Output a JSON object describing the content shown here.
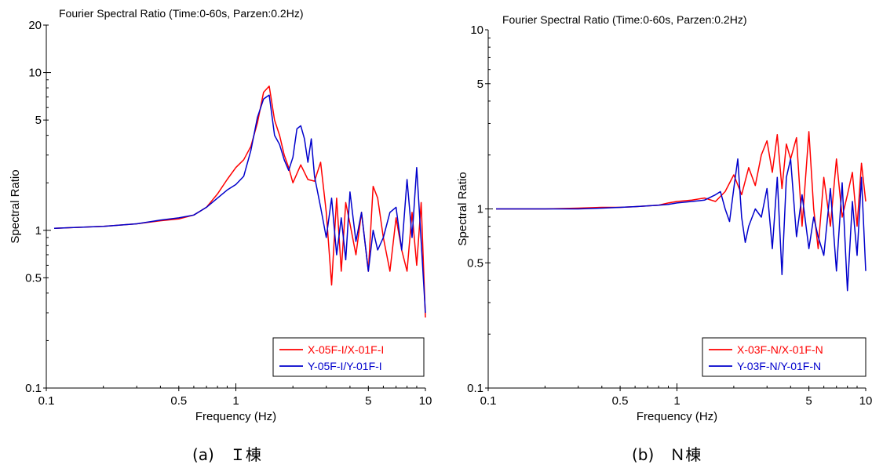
{
  "captions": [
    "(a)　Ｉ棟",
    "(b)　Ｎ棟"
  ],
  "chart_data": [
    {
      "type": "line",
      "title": "Fourier Spectral Ratio (Time:0-60s, Parzen:0.2Hz)",
      "xlabel": "Frequency (Hz)",
      "ylabel": "Spectral Ratio",
      "xscale": "log",
      "yscale": "log",
      "xlim": [
        0.1,
        10
      ],
      "ylim": [
        0.1,
        20
      ],
      "x_ticks": [
        0.1,
        0.5,
        1,
        5,
        10
      ],
      "x_tick_labels": [
        "0.1",
        "0.5",
        "1",
        "5",
        "10"
      ],
      "y_ticks": [
        0.1,
        0.5,
        1,
        5,
        10,
        20
      ],
      "y_tick_labels": [
        "0.1",
        "0.5",
        "1",
        "5",
        "10",
        "20"
      ],
      "grid": false,
      "legend_position": "bottom-right",
      "series": [
        {
          "name": "X-05F-I/X-01F-I",
          "color": "#ff0000",
          "x": [
            0.11,
            0.2,
            0.3,
            0.4,
            0.5,
            0.6,
            0.7,
            0.8,
            0.9,
            1.0,
            1.1,
            1.2,
            1.3,
            1.4,
            1.5,
            1.6,
            1.7,
            1.8,
            1.9,
            2.0,
            2.2,
            2.4,
            2.6,
            2.8,
            3.0,
            3.2,
            3.4,
            3.6,
            3.8,
            4.0,
            4.3,
            4.6,
            5.0,
            5.3,
            5.6,
            6.0,
            6.5,
            7.0,
            7.5,
            8.0,
            8.5,
            9.0,
            9.5,
            10.0
          ],
          "y": [
            1.03,
            1.06,
            1.1,
            1.15,
            1.18,
            1.25,
            1.4,
            1.7,
            2.1,
            2.5,
            2.8,
            3.4,
            4.8,
            7.5,
            8.2,
            5.0,
            4.0,
            3.0,
            2.5,
            2.0,
            2.6,
            2.1,
            2.05,
            2.7,
            1.3,
            0.45,
            1.6,
            0.55,
            1.5,
            1.1,
            0.7,
            1.3,
            0.55,
            1.9,
            1.6,
            0.9,
            0.55,
            1.2,
            0.75,
            0.55,
            1.3,
            0.6,
            1.5,
            0.28
          ]
        },
        {
          "name": "Y-05F-I/Y-01F-I",
          "color": "#0000cc",
          "x": [
            0.11,
            0.2,
            0.3,
            0.4,
            0.5,
            0.6,
            0.7,
            0.8,
            0.9,
            1.0,
            1.1,
            1.2,
            1.3,
            1.4,
            1.5,
            1.6,
            1.7,
            1.8,
            1.9,
            2.0,
            2.1,
            2.2,
            2.3,
            2.4,
            2.5,
            2.6,
            2.8,
            3.0,
            3.2,
            3.4,
            3.6,
            3.8,
            4.0,
            4.3,
            4.6,
            5.0,
            5.3,
            5.6,
            6.0,
            6.5,
            7.0,
            7.5,
            8.0,
            8.5,
            9.0,
            9.5,
            10.0
          ],
          "y": [
            1.03,
            1.06,
            1.1,
            1.16,
            1.2,
            1.25,
            1.4,
            1.6,
            1.8,
            1.95,
            2.2,
            3.2,
            5.2,
            6.8,
            7.2,
            4.0,
            3.5,
            2.8,
            2.4,
            2.9,
            4.4,
            4.6,
            3.8,
            2.7,
            3.8,
            2.2,
            1.4,
            0.9,
            1.6,
            0.7,
            1.2,
            0.65,
            1.75,
            0.85,
            1.3,
            0.55,
            1.0,
            0.75,
            0.9,
            1.3,
            1.4,
            0.75,
            2.1,
            0.9,
            2.5,
            0.85,
            0.3
          ]
        }
      ]
    },
    {
      "type": "line",
      "title": "Fourier Spectral Ratio (Time:0-60s, Parzen:0.2Hz)",
      "xlabel": "Frequency (Hz)",
      "ylabel": "Spectral Ratio",
      "xscale": "log",
      "yscale": "log",
      "xlim": [
        0.1,
        10
      ],
      "ylim": [
        0.1,
        10
      ],
      "x_ticks": [
        0.1,
        0.5,
        1,
        5,
        10
      ],
      "x_tick_labels": [
        "0.1",
        "0.5",
        "1",
        "5",
        "10"
      ],
      "y_ticks": [
        0.1,
        0.5,
        1,
        5,
        10
      ],
      "y_tick_labels": [
        "0.1",
        "0.5",
        "1",
        "5",
        "10"
      ],
      "grid": false,
      "legend_position": "bottom-right",
      "series": [
        {
          "name": "X-03F-N/X-01F-N",
          "color": "#ff0000",
          "x": [
            0.11,
            0.2,
            0.3,
            0.4,
            0.5,
            0.6,
            0.7,
            0.8,
            0.9,
            1.0,
            1.2,
            1.4,
            1.6,
            1.8,
            2.0,
            2.2,
            2.4,
            2.6,
            2.8,
            3.0,
            3.2,
            3.4,
            3.6,
            3.8,
            4.0,
            4.3,
            4.6,
            5.0,
            5.3,
            5.6,
            6.0,
            6.5,
            7.0,
            7.5,
            8.0,
            8.5,
            9.0,
            9.5,
            10.0
          ],
          "y": [
            1.0,
            1.0,
            1.01,
            1.02,
            1.02,
            1.03,
            1.04,
            1.05,
            1.08,
            1.1,
            1.12,
            1.15,
            1.1,
            1.25,
            1.55,
            1.2,
            1.7,
            1.35,
            2.0,
            2.4,
            1.6,
            2.6,
            1.3,
            2.3,
            1.9,
            2.5,
            0.8,
            2.7,
            1.0,
            0.6,
            1.5,
            0.8,
            1.9,
            0.9,
            1.2,
            1.6,
            0.8,
            1.8,
            1.1
          ]
        },
        {
          "name": "Y-03F-N/Y-01F-N",
          "color": "#0000cc",
          "x": [
            0.11,
            0.2,
            0.3,
            0.4,
            0.5,
            0.6,
            0.7,
            0.8,
            0.9,
            1.0,
            1.2,
            1.4,
            1.6,
            1.7,
            1.8,
            1.9,
            2.0,
            2.1,
            2.2,
            2.3,
            2.4,
            2.6,
            2.8,
            3.0,
            3.2,
            3.4,
            3.6,
            3.8,
            4.0,
            4.3,
            4.6,
            5.0,
            5.3,
            5.6,
            6.0,
            6.5,
            7.0,
            7.5,
            8.0,
            8.5,
            9.0,
            9.5,
            10.0
          ],
          "y": [
            1.0,
            1.0,
            1.0,
            1.01,
            1.02,
            1.03,
            1.04,
            1.05,
            1.06,
            1.08,
            1.1,
            1.12,
            1.2,
            1.25,
            1.0,
            0.85,
            1.3,
            1.9,
            0.9,
            0.65,
            0.8,
            1.0,
            0.9,
            1.3,
            0.6,
            1.5,
            0.43,
            1.5,
            1.9,
            0.7,
            1.2,
            0.6,
            0.9,
            0.7,
            0.55,
            1.3,
            0.45,
            1.4,
            0.35,
            1.1,
            0.55,
            1.5,
            0.45
          ]
        }
      ]
    }
  ]
}
